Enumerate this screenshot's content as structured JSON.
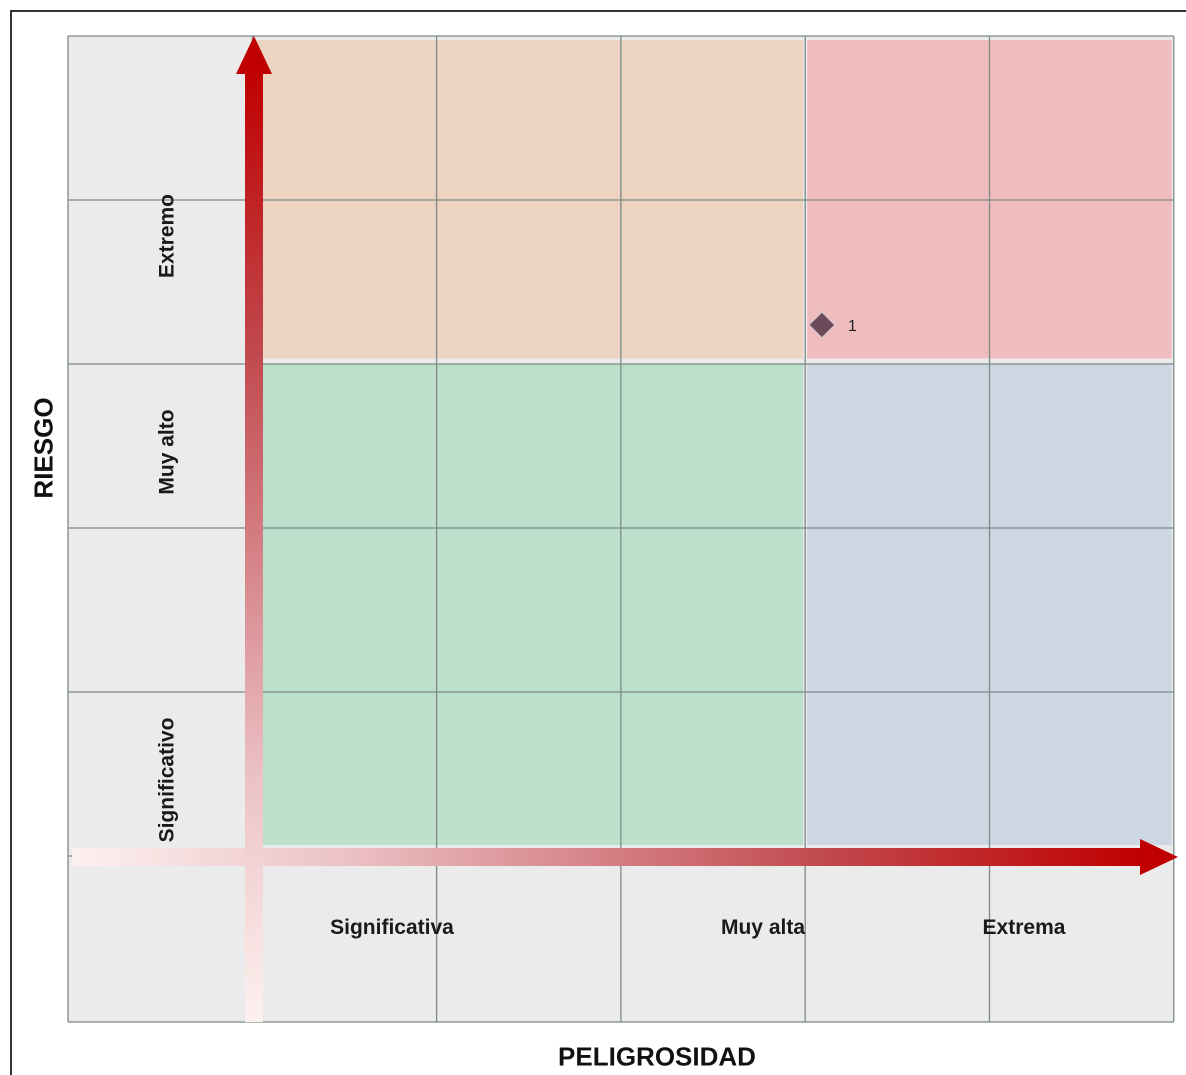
{
  "chart_data": {
    "type": "heatmap",
    "title": "",
    "xlabel": "PELIGROSIDAD",
    "ylabel": "RIESGO",
    "x_categories": [
      "",
      "Significativa",
      "",
      "Muy alta",
      "",
      "Extrema"
    ],
    "y_categories": [
      "Significativo",
      "",
      "Muy alto",
      "",
      "Extremo",
      ""
    ],
    "zones": [
      {
        "x_range": [
          1,
          4
        ],
        "y_range": [
          3,
          5
        ],
        "color": "#ecd3c2"
      },
      {
        "x_range": [
          4,
          6
        ],
        "y_range": [
          3,
          5
        ],
        "color": "#efbdbe"
      },
      {
        "x_range": [
          1,
          4
        ],
        "y_range": [
          0,
          3
        ],
        "color": "#bde0cc"
      },
      {
        "x_range": [
          4,
          6
        ],
        "y_range": [
          0,
          3
        ],
        "color": "#cdd7e3"
      }
    ],
    "points": [
      {
        "label": "1",
        "x": 3.7,
        "y": 3.2
      }
    ],
    "colors": {
      "background": "#ebebeb",
      "grid": "#7d8a86",
      "arrow": "#c00000",
      "marker": "#6b4a5a"
    }
  }
}
